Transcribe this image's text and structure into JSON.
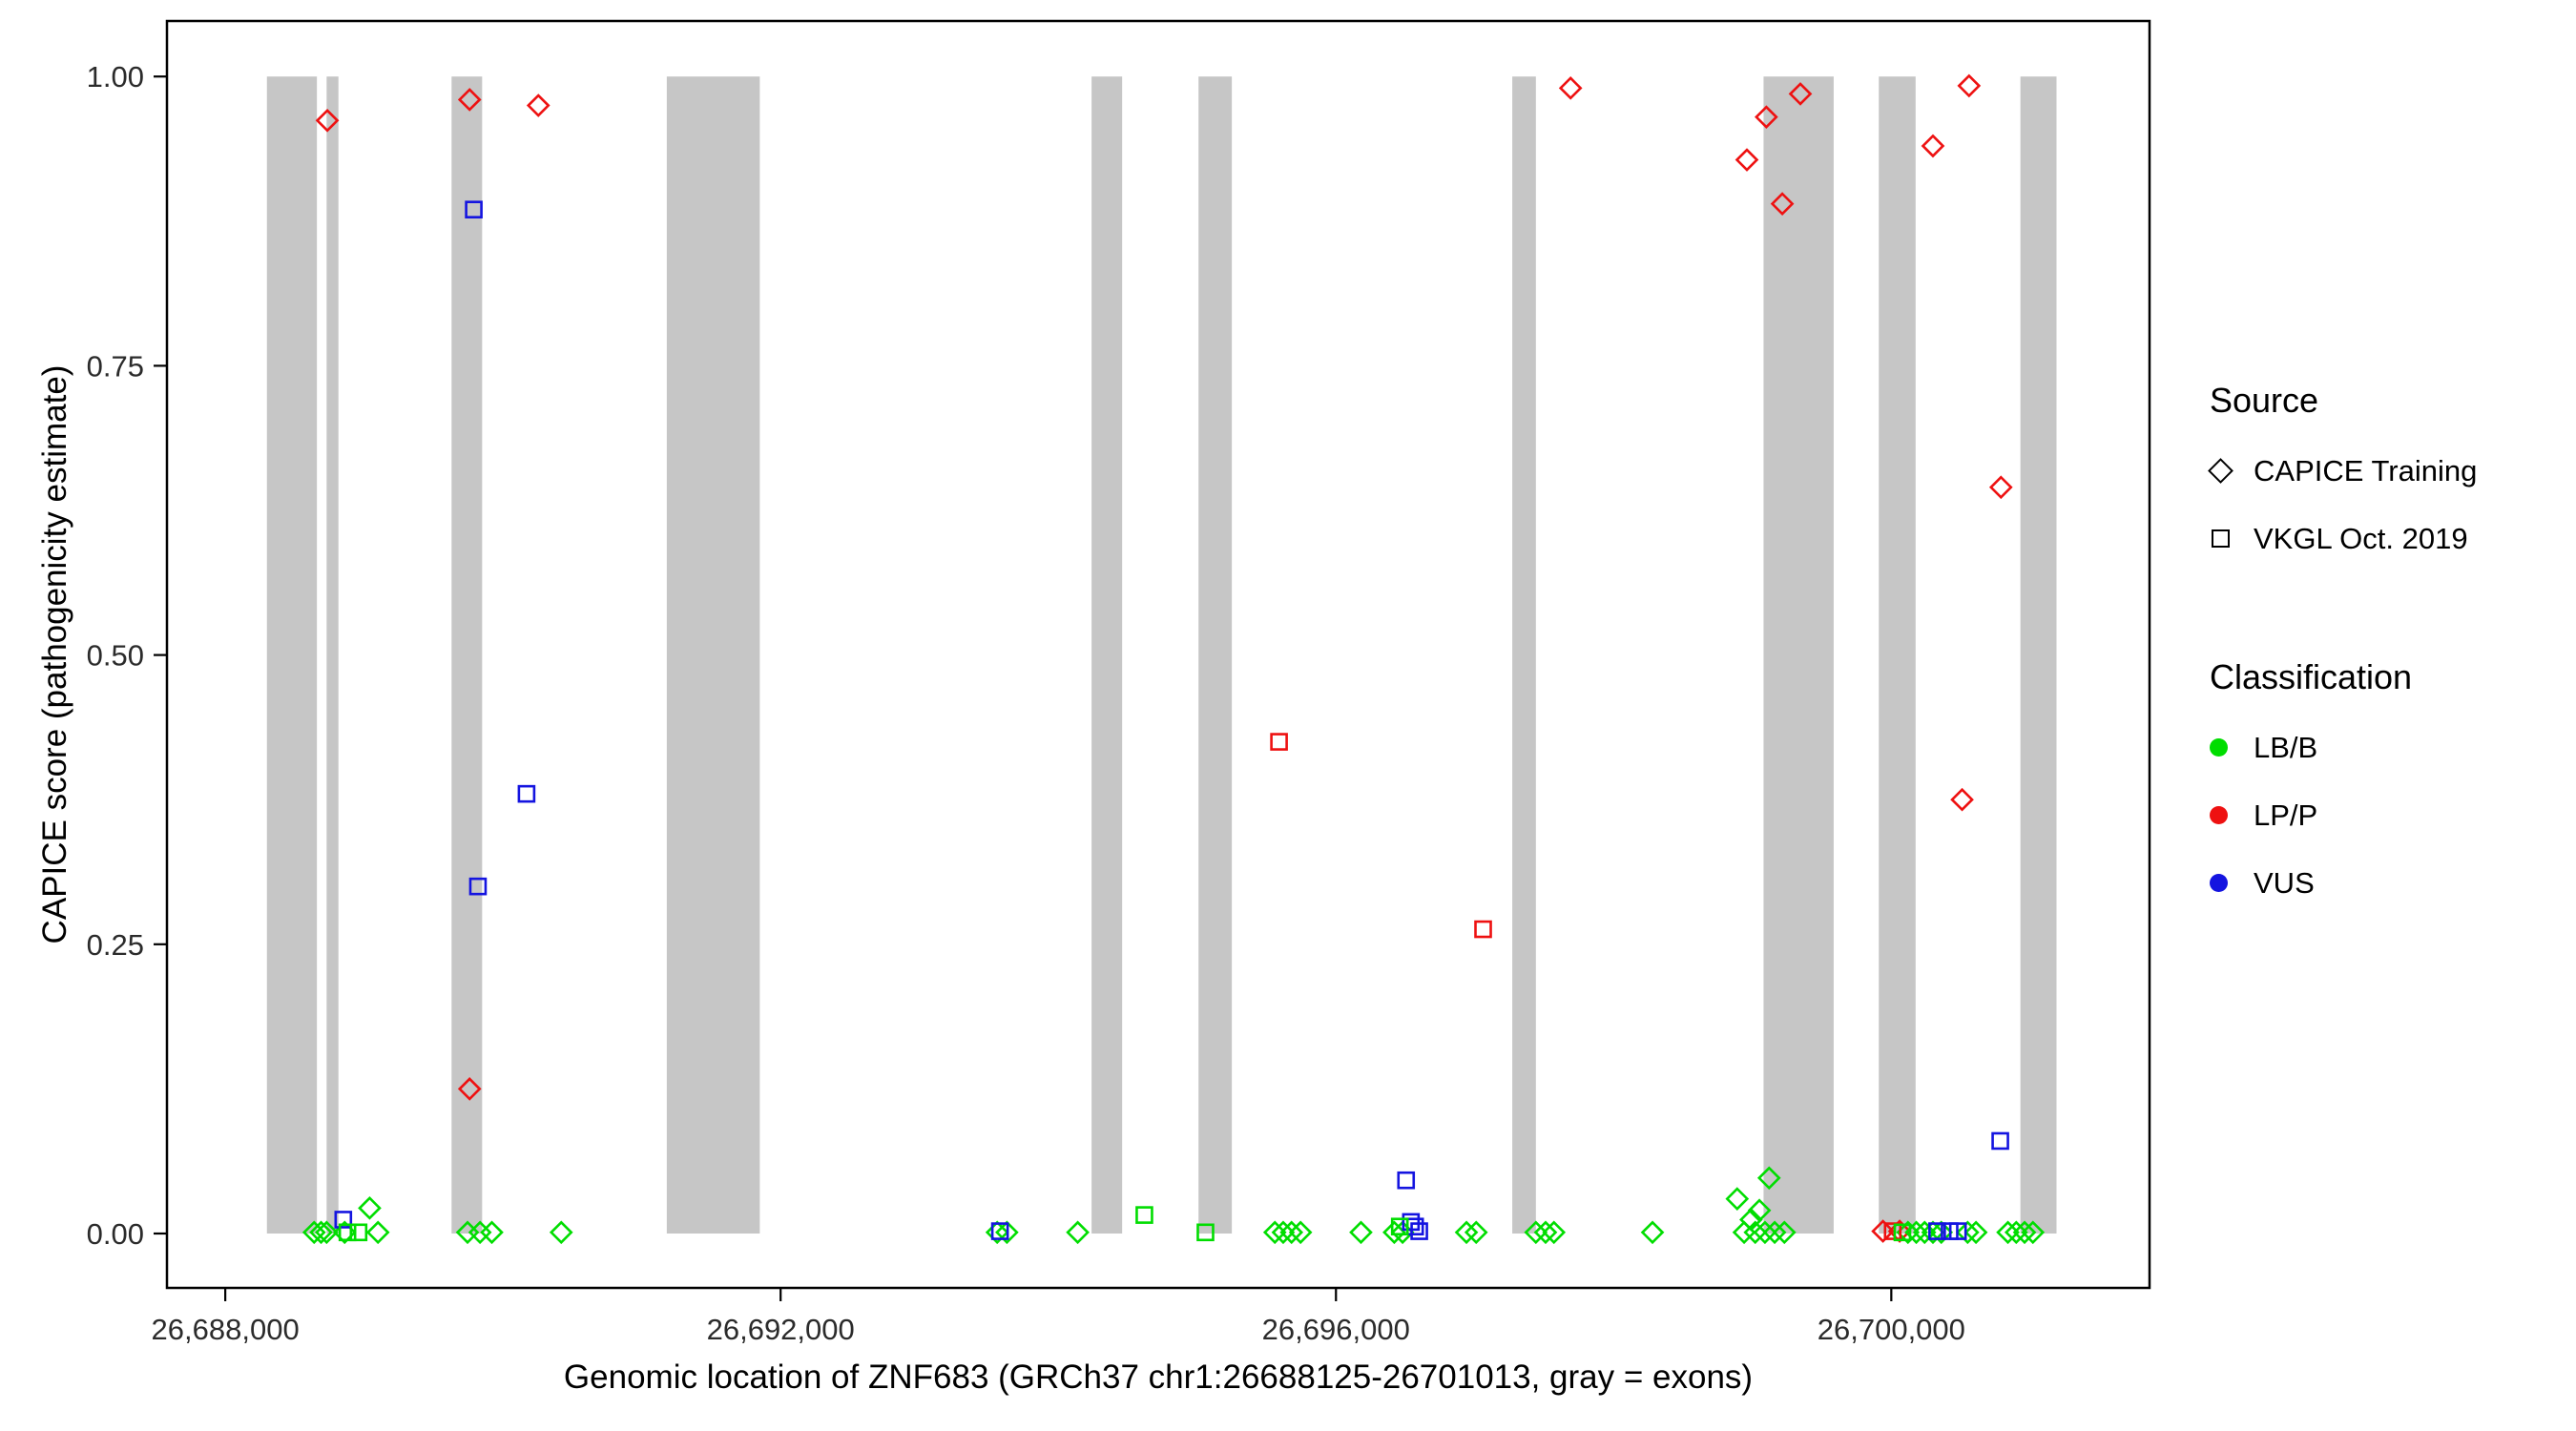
{
  "figure": {
    "xlabel": "Genomic location of ZNF683 (GRCh37 chr1:26688125-26701013, gray = exons)",
    "ylabel": "CAPICE score (pathogenicity estimate)",
    "legend_source": {
      "title": "Source",
      "entries": [
        {
          "label": "CAPICE Training",
          "shape": "diamond"
        },
        {
          "label": "VKGL Oct. 2019",
          "shape": "square"
        }
      ]
    },
    "legend_classification": {
      "title": "Classification",
      "entries": [
        {
          "label": "LB/B",
          "color": "#00dd00"
        },
        {
          "label": "LP/P",
          "color": "#ee1111"
        },
        {
          "label": "VUS",
          "color": "#1414e0"
        }
      ]
    }
  },
  "chart_data": {
    "type": "scatter",
    "title": "",
    "xlabel": "Genomic location of ZNF683 (GRCh37 chr1:26688125-26701013, gray = exons)",
    "ylabel": "CAPICE score (pathogenicity estimate)",
    "xlim": [
      26687580,
      26701860
    ],
    "ylim": [
      -0.047,
      1.048
    ],
    "legend_position": "right",
    "grid": false,
    "exon_color": "#c6c6c6",
    "x_ticks": [
      {
        "v": 26688000,
        "label": "26,688,000"
      },
      {
        "v": 26692000,
        "label": "26,692,000"
      },
      {
        "v": 26696000,
        "label": "26,696,000"
      },
      {
        "v": 26700000,
        "label": "26,700,000"
      }
    ],
    "y_ticks": [
      {
        "v": 0.0,
        "label": "0.00"
      },
      {
        "v": 0.25,
        "label": "0.25"
      },
      {
        "v": 0.5,
        "label": "0.50"
      },
      {
        "v": 0.75,
        "label": "0.75"
      },
      {
        "v": 1.0,
        "label": "1.00"
      }
    ],
    "exons": [
      [
        26688300,
        26688660
      ],
      [
        26688730,
        26688815
      ],
      [
        26689630,
        26689850
      ],
      [
        26691180,
        26691850
      ],
      [
        26694240,
        26694460
      ],
      [
        26695010,
        26695250
      ],
      [
        26697270,
        26697440
      ],
      [
        26699080,
        26699585
      ],
      [
        26699910,
        26700175
      ],
      [
        26700930,
        26701190
      ]
    ],
    "series": [
      {
        "name": "CAPICE Training / LP-P",
        "source": "CAPICE Training",
        "classification": "LP/P",
        "shape": "diamond",
        "color": "#ee1111",
        "points": [
          [
            26688735,
            0.962
          ],
          [
            26689760,
            0.98
          ],
          [
            26690255,
            0.975
          ],
          [
            26697690,
            0.99
          ],
          [
            26698960,
            0.928
          ],
          [
            26699100,
            0.965
          ],
          [
            26699345,
            0.985
          ],
          [
            26699215,
            0.89
          ],
          [
            26700300,
            0.94
          ],
          [
            26700560,
            0.992
          ],
          [
            26700790,
            0.645
          ],
          [
            26700510,
            0.375
          ],
          [
            26689760,
            0.125
          ],
          [
            26699940,
            0.002
          ],
          [
            26700060,
            0.002
          ]
        ]
      },
      {
        "name": "CAPICE Training / LB-B",
        "source": "CAPICE Training",
        "classification": "LB/B",
        "shape": "diamond",
        "color": "#00dd00",
        "points": [
          [
            26688640,
            0.001
          ],
          [
            26688690,
            0.001
          ],
          [
            26688730,
            0.001
          ],
          [
            26688860,
            0.001
          ],
          [
            26689040,
            0.022
          ],
          [
            26689100,
            0.001
          ],
          [
            26689745,
            0.001
          ],
          [
            26689835,
            0.001
          ],
          [
            26689920,
            0.001
          ],
          [
            26690420,
            0.001
          ],
          [
            26693560,
            0.001
          ],
          [
            26693630,
            0.001
          ],
          [
            26694140,
            0.001
          ],
          [
            26695560,
            0.001
          ],
          [
            26695620,
            0.001
          ],
          [
            26695680,
            0.001
          ],
          [
            26695745,
            0.001
          ],
          [
            26696180,
            0.001
          ],
          [
            26696420,
            0.001
          ],
          [
            26696480,
            0.001
          ],
          [
            26696940,
            0.001
          ],
          [
            26697010,
            0.001
          ],
          [
            26697440,
            0.001
          ],
          [
            26697510,
            0.001
          ],
          [
            26697570,
            0.001
          ],
          [
            26698280,
            0.001
          ],
          [
            26698890,
            0.03
          ],
          [
            26698990,
            0.012
          ],
          [
            26699050,
            0.02
          ],
          [
            26699120,
            0.048
          ],
          [
            26698940,
            0.001
          ],
          [
            26699020,
            0.001
          ],
          [
            26699090,
            0.001
          ],
          [
            26699160,
            0.001
          ],
          [
            26699230,
            0.001
          ],
          [
            26700120,
            0.001
          ],
          [
            26700180,
            0.001
          ],
          [
            26700240,
            0.001
          ],
          [
            26700300,
            0.001
          ],
          [
            26700360,
            0.001
          ],
          [
            26700550,
            0.001
          ],
          [
            26700610,
            0.001
          ],
          [
            26700840,
            0.001
          ],
          [
            26700900,
            0.001
          ],
          [
            26700960,
            0.001
          ],
          [
            26701020,
            0.001
          ]
        ]
      },
      {
        "name": "VKGL Oct. 2019 / VUS",
        "source": "VKGL Oct. 2019",
        "classification": "VUS",
        "shape": "square",
        "color": "#1414e0",
        "points": [
          [
            26689790,
            0.885
          ],
          [
            26690170,
            0.38
          ],
          [
            26689820,
            0.3
          ],
          [
            26696505,
            0.046
          ],
          [
            26700785,
            0.08
          ],
          [
            26688850,
            0.012
          ],
          [
            26693580,
            0.002
          ],
          [
            26696540,
            0.01
          ],
          [
            26696570,
            0.006
          ],
          [
            26696600,
            0.002
          ],
          [
            26700330,
            0.002
          ],
          [
            26700420,
            0.002
          ],
          [
            26700480,
            0.002
          ]
        ]
      },
      {
        "name": "VKGL Oct. 2019 / LP-P",
        "source": "VKGL Oct. 2019",
        "classification": "LP/P",
        "shape": "square",
        "color": "#ee1111",
        "points": [
          [
            26695590,
            0.425
          ],
          [
            26697060,
            0.263
          ],
          [
            26700010,
            0.002
          ]
        ]
      },
      {
        "name": "VKGL Oct. 2019 / LB-B",
        "source": "VKGL Oct. 2019",
        "classification": "LB/B",
        "shape": "square",
        "color": "#00dd00",
        "points": [
          [
            26688880,
            0.001
          ],
          [
            26688960,
            0.001
          ],
          [
            26694620,
            0.016
          ],
          [
            26695060,
            0.001
          ],
          [
            26696460,
            0.006
          ],
          [
            26700080,
            0.001
          ]
        ]
      }
    ]
  }
}
